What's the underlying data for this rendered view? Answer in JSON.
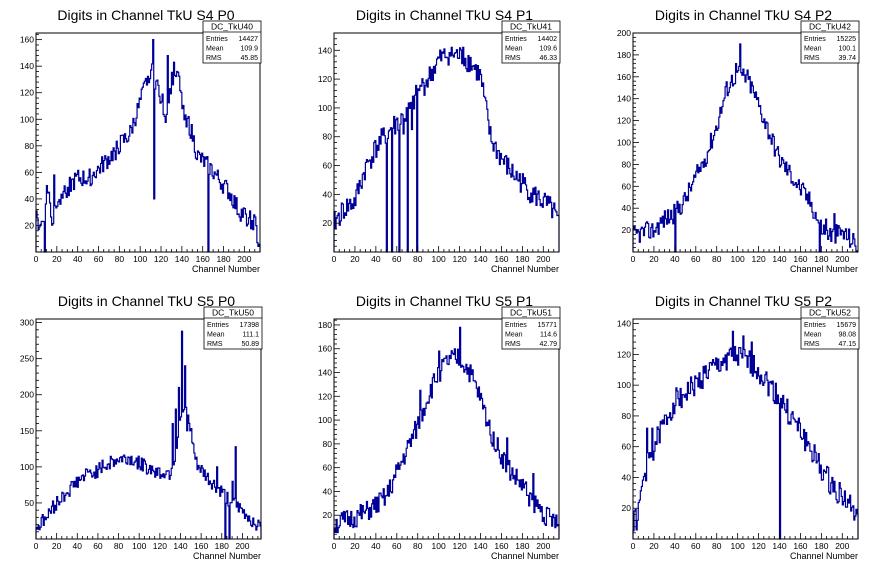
{
  "chart_data": [
    {
      "type": "histogram",
      "title": "Digits in Channel TkU S4 P0",
      "xlabel": "Channel Number",
      "xlim": [
        0,
        215
      ],
      "ylim": [
        0,
        165
      ],
      "xticks": [
        0,
        20,
        40,
        60,
        80,
        100,
        120,
        140,
        160,
        180,
        200
      ],
      "yticks": [
        20,
        40,
        60,
        80,
        100,
        120,
        140,
        160
      ],
      "stats": {
        "name": "DC_TkU40",
        "entries": "14427",
        "mean": "109.9",
        "rms": "45.85"
      },
      "anchors": [
        [
          0,
          40
        ],
        [
          3,
          15
        ],
        [
          8,
          30
        ],
        [
          12,
          45
        ],
        [
          16,
          20
        ],
        [
          20,
          40
        ],
        [
          30,
          48
        ],
        [
          40,
          55
        ],
        [
          50,
          55
        ],
        [
          60,
          62
        ],
        [
          70,
          70
        ],
        [
          80,
          80
        ],
        [
          90,
          88
        ],
        [
          100,
          112
        ],
        [
          105,
          125
        ],
        [
          110,
          138
        ],
        [
          115,
          128
        ],
        [
          120,
          118
        ],
        [
          125,
          100
        ],
        [
          130,
          128
        ],
        [
          135,
          140
        ],
        [
          140,
          112
        ],
        [
          145,
          100
        ],
        [
          150,
          88
        ],
        [
          155,
          72
        ],
        [
          160,
          68
        ],
        [
          165,
          65
        ],
        [
          170,
          60
        ],
        [
          175,
          55
        ],
        [
          180,
          50
        ],
        [
          185,
          45
        ],
        [
          190,
          38
        ],
        [
          195,
          30
        ],
        [
          200,
          28
        ],
        [
          205,
          25
        ],
        [
          210,
          22
        ],
        [
          214,
          5
        ]
      ],
      "spikes": [
        [
          112,
          160
        ],
        [
          113,
          40
        ],
        [
          126,
          148
        ],
        [
          132,
          143
        ],
        [
          165,
          0
        ],
        [
          8,
          0
        ],
        [
          10,
          50
        ],
        [
          17,
          58
        ]
      ],
      "noise": 7,
      "seed": 40
    },
    {
      "type": "histogram",
      "title": "Digits in Channel TkU S4 P1",
      "xlabel": "Channel Number",
      "xlim": [
        0,
        215
      ],
      "ylim": [
        0,
        152
      ],
      "xticks": [
        0,
        20,
        40,
        60,
        80,
        100,
        120,
        140,
        160,
        180,
        200
      ],
      "yticks": [
        20,
        40,
        60,
        80,
        100,
        120,
        140
      ],
      "stats": {
        "name": "DC_TkU41",
        "entries": "14402",
        "mean": "109.6",
        "rms": "46.33"
      },
      "anchors": [
        [
          0,
          20
        ],
        [
          10,
          30
        ],
        [
          20,
          35
        ],
        [
          30,
          58
        ],
        [
          40,
          72
        ],
        [
          50,
          82
        ],
        [
          60,
          90
        ],
        [
          70,
          95
        ],
        [
          80,
          110
        ],
        [
          90,
          120
        ],
        [
          100,
          133
        ],
        [
          110,
          138
        ],
        [
          120,
          136
        ],
        [
          130,
          132
        ],
        [
          140,
          122
        ],
        [
          150,
          78
        ],
        [
          160,
          65
        ],
        [
          170,
          55
        ],
        [
          180,
          48
        ],
        [
          190,
          40
        ],
        [
          200,
          35
        ],
        [
          210,
          28
        ],
        [
          214,
          20
        ]
      ],
      "spikes": [
        [
          50,
          0
        ],
        [
          52,
          84
        ],
        [
          55,
          0
        ],
        [
          58,
          82
        ],
        [
          62,
          0
        ],
        [
          66,
          82
        ],
        [
          70,
          0
        ],
        [
          74,
          85
        ],
        [
          79,
          0
        ],
        [
          83,
          115
        ],
        [
          112,
          142
        ],
        [
          123,
          142
        ],
        [
          130,
          135
        ]
      ],
      "noise": 8,
      "seed": 41
    },
    {
      "type": "histogram",
      "title": "Digits in Channel TkU S4 P2",
      "xlabel": "Channel Number",
      "xlim": [
        0,
        215
      ],
      "ylim": [
        0,
        200
      ],
      "xticks": [
        0,
        20,
        40,
        60,
        80,
        100,
        120,
        140,
        160,
        180,
        200
      ],
      "yticks": [
        20,
        40,
        60,
        80,
        100,
        120,
        140,
        160,
        180,
        200
      ],
      "stats": {
        "name": "DC_TkU42",
        "entries": "15225",
        "mean": "100.1",
        "rms": "39.74"
      },
      "anchors": [
        [
          0,
          15
        ],
        [
          10,
          18
        ],
        [
          20,
          20
        ],
        [
          30,
          30
        ],
        [
          40,
          35
        ],
        [
          50,
          48
        ],
        [
          60,
          68
        ],
        [
          70,
          88
        ],
        [
          80,
          115
        ],
        [
          90,
          150
        ],
        [
          100,
          165
        ],
        [
          110,
          158
        ],
        [
          120,
          135
        ],
        [
          130,
          110
        ],
        [
          140,
          85
        ],
        [
          150,
          72
        ],
        [
          160,
          58
        ],
        [
          170,
          45
        ],
        [
          180,
          22
        ],
        [
          190,
          15
        ],
        [
          200,
          18
        ],
        [
          210,
          10
        ],
        [
          214,
          5
        ]
      ],
      "spikes": [
        [
          102,
          190
        ],
        [
          40,
          0
        ],
        [
          98,
          172
        ],
        [
          178,
          0
        ],
        [
          184,
          30
        ],
        [
          192,
          35
        ]
      ],
      "noise": 9,
      "seed": 42
    },
    {
      "type": "histogram",
      "title": "Digits in Channel TkU S5 P0",
      "xlabel": "Channel Number",
      "xlim": [
        0,
        218
      ],
      "ylim": [
        0,
        305
      ],
      "xticks": [
        0,
        20,
        40,
        60,
        80,
        100,
        120,
        140,
        160,
        180,
        200
      ],
      "yticks": [
        50,
        100,
        150,
        200,
        250,
        300
      ],
      "stats": {
        "name": "DC_TkU50",
        "entries": "17398",
        "mean": "111.1",
        "rms": "50.89"
      },
      "anchors": [
        [
          0,
          15
        ],
        [
          10,
          30
        ],
        [
          20,
          50
        ],
        [
          30,
          65
        ],
        [
          40,
          80
        ],
        [
          50,
          90
        ],
        [
          60,
          95
        ],
        [
          70,
          105
        ],
        [
          80,
          110
        ],
        [
          90,
          112
        ],
        [
          100,
          105
        ],
        [
          110,
          98
        ],
        [
          120,
          92
        ],
        [
          130,
          92
        ],
        [
          135,
          115
        ],
        [
          140,
          170
        ],
        [
          145,
          180
        ],
        [
          150,
          150
        ],
        [
          155,
          105
        ],
        [
          160,
          95
        ],
        [
          170,
          78
        ],
        [
          180,
          65
        ],
        [
          190,
          50
        ],
        [
          200,
          38
        ],
        [
          210,
          25
        ],
        [
          217,
          18
        ]
      ],
      "spikes": [
        [
          138,
          210
        ],
        [
          141,
          288
        ],
        [
          144,
          240
        ],
        [
          146,
          150
        ],
        [
          135,
          180
        ],
        [
          132,
          160
        ],
        [
          183,
          0
        ],
        [
          187,
          0
        ],
        [
          190,
          80
        ],
        [
          193,
          128
        ],
        [
          175,
          100
        ]
      ],
      "noise": 10,
      "seed": 50
    },
    {
      "type": "histogram",
      "title": "Digits in Channel TkU S5 P1",
      "xlabel": "Channel Number",
      "xlim": [
        0,
        215
      ],
      "ylim": [
        0,
        185
      ],
      "xticks": [
        0,
        20,
        40,
        60,
        80,
        100,
        120,
        140,
        160,
        180,
        200
      ],
      "yticks": [
        20,
        40,
        60,
        80,
        100,
        120,
        140,
        160,
        180
      ],
      "stats": {
        "name": "DC_TkU51",
        "entries": "15771",
        "mean": "114.6",
        "rms": "42.79"
      },
      "anchors": [
        [
          0,
          12
        ],
        [
          10,
          15
        ],
        [
          20,
          18
        ],
        [
          30,
          22
        ],
        [
          40,
          28
        ],
        [
          50,
          35
        ],
        [
          60,
          55
        ],
        [
          70,
          75
        ],
        [
          80,
          95
        ],
        [
          90,
          120
        ],
        [
          100,
          140
        ],
        [
          110,
          150
        ],
        [
          120,
          152
        ],
        [
          130,
          140
        ],
        [
          140,
          118
        ],
        [
          150,
          90
        ],
        [
          160,
          70
        ],
        [
          170,
          55
        ],
        [
          180,
          45
        ],
        [
          190,
          32
        ],
        [
          200,
          22
        ],
        [
          210,
          15
        ],
        [
          214,
          10
        ]
      ],
      "spikes": [
        [
          120,
          178
        ],
        [
          100,
          158
        ],
        [
          82,
          125
        ],
        [
          165,
          85
        ],
        [
          190,
          55
        ]
      ],
      "noise": 9,
      "seed": 51
    },
    {
      "type": "histogram",
      "title": "Digits in Channel TkU S5 P2",
      "xlabel": "Channel Number",
      "xlim": [
        0,
        215
      ],
      "ylim": [
        0,
        143
      ],
      "xticks": [
        0,
        20,
        40,
        60,
        80,
        100,
        120,
        140,
        160,
        180,
        200
      ],
      "yticks": [
        20,
        40,
        60,
        80,
        100,
        120,
        140
      ],
      "stats": {
        "name": "DC_TkU52",
        "entries": "15679",
        "mean": "98.08",
        "rms": "47.15"
      },
      "anchors": [
        [
          0,
          10
        ],
        [
          5,
          15
        ],
        [
          10,
          40
        ],
        [
          15,
          50
        ],
        [
          20,
          60
        ],
        [
          30,
          75
        ],
        [
          40,
          90
        ],
        [
          50,
          95
        ],
        [
          60,
          100
        ],
        [
          70,
          108
        ],
        [
          80,
          112
        ],
        [
          90,
          118
        ],
        [
          100,
          118
        ],
        [
          110,
          115
        ],
        [
          120,
          110
        ],
        [
          130,
          100
        ],
        [
          140,
          92
        ],
        [
          150,
          80
        ],
        [
          160,
          70
        ],
        [
          170,
          58
        ],
        [
          180,
          45
        ],
        [
          190,
          35
        ],
        [
          200,
          28
        ],
        [
          210,
          20
        ],
        [
          214,
          10
        ]
      ],
      "spikes": [
        [
          140,
          0
        ],
        [
          95,
          135
        ],
        [
          105,
          132
        ],
        [
          13,
          72
        ],
        [
          18,
          72
        ],
        [
          113,
          128
        ]
      ],
      "noise": 8,
      "seed": 52
    }
  ]
}
